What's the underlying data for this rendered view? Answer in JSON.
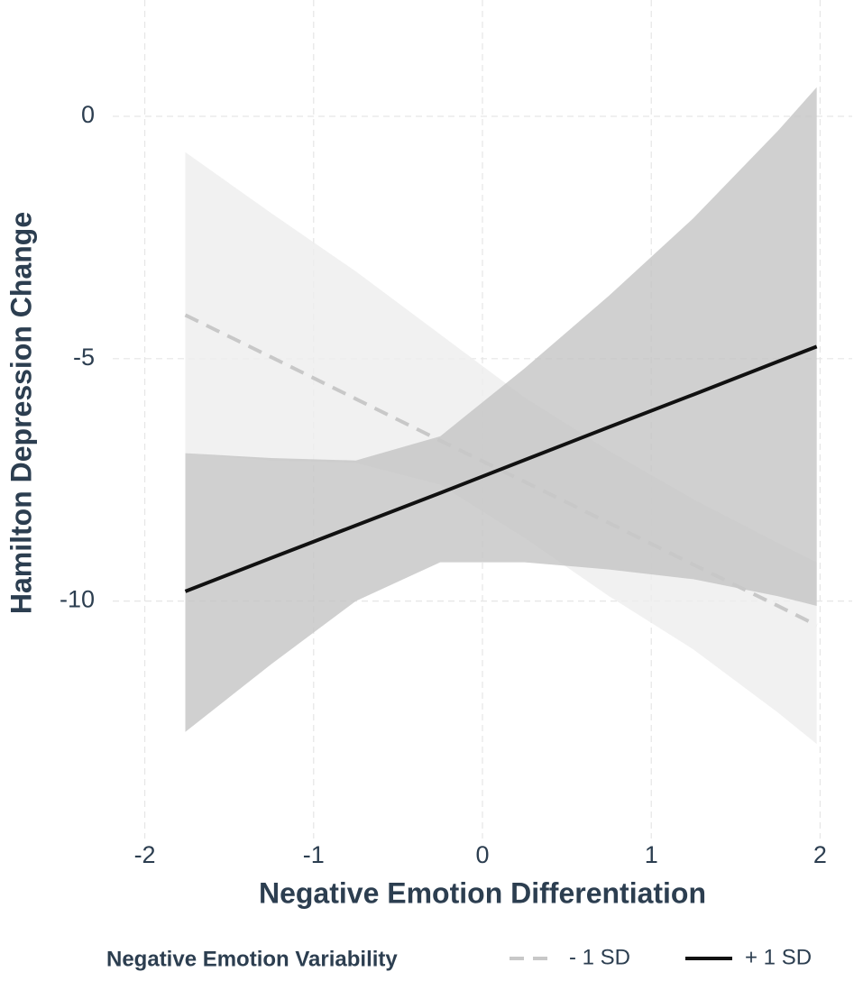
{
  "chart_data": {
    "type": "line",
    "x_label": "Negative Emotion Differentiation",
    "y_label": "Hamilton Depression Change",
    "legend_title": "Negative Emotion Variability",
    "legend_position": "bottom",
    "grid": true,
    "xlim": [
      -2.19,
      2.19
    ],
    "ylim": [
      -14.9,
      2.4
    ],
    "xticks": [
      -2,
      -1,
      0,
      1,
      2
    ],
    "yticks": [
      0,
      -5,
      -10
    ],
    "x": [
      -1.76,
      -1.25,
      -0.75,
      -0.25,
      0.25,
      0.75,
      1.25,
      1.75,
      1.98
    ],
    "series": [
      {
        "name": "- 1 SD",
        "color": "#c8c8c8",
        "band_color": "#ededed",
        "dashed": true,
        "values": [
          -4.1,
          -4.97,
          -5.83,
          -6.69,
          -7.54,
          -8.39,
          -9.25,
          -10.1,
          -10.5
        ],
        "lower": [
          -6.95,
          -7.1,
          -7.15,
          -7.6,
          -8.7,
          -9.9,
          -11.0,
          -12.3,
          -12.95
        ],
        "upper": [
          -0.74,
          -2.0,
          -3.2,
          -4.5,
          -5.8,
          -6.9,
          -7.9,
          -8.8,
          -9.2
        ]
      },
      {
        "name": "+ 1 SD",
        "color": "#111111",
        "band_color": "#c4c4c4",
        "dashed": false,
        "values": [
          -9.8,
          -9.11,
          -8.44,
          -7.77,
          -7.09,
          -6.41,
          -5.74,
          -5.06,
          -4.75
        ],
        "lower": [
          -12.7,
          -11.3,
          -10.0,
          -9.2,
          -9.2,
          -9.35,
          -9.55,
          -9.9,
          -10.1
        ],
        "upper": [
          -6.95,
          -7.05,
          -7.1,
          -6.6,
          -5.2,
          -3.7,
          -2.1,
          -0.3,
          0.6
        ]
      }
    ]
  }
}
